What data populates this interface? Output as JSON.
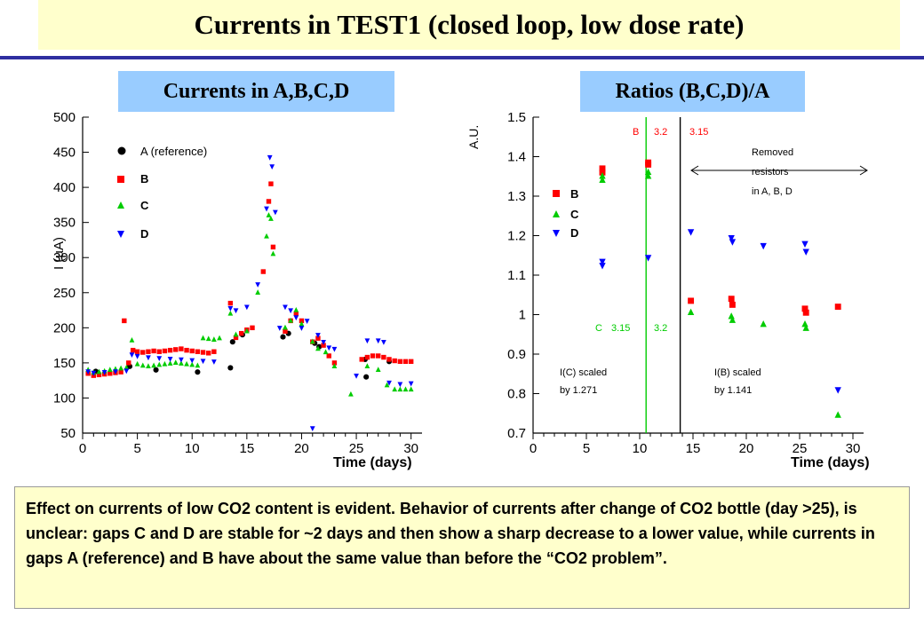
{
  "title": "Currents in TEST1 (closed loop, low dose rate)",
  "left_subtitle": "Currents in A,B,C,D",
  "right_subtitle": "Ratios (B,C,D)/A",
  "description": "Effect on currents of low CO2 content is evident. Behavior of currents after change of CO2 bottle (day >25), is unclear: gaps C and D are stable for ~2 days and then show a sharp decrease to a lower value, while currents in gaps A (reference) and B have about the same value than before the “CO2 problem”.",
  "colors": {
    "A": "#000000",
    "B": "#ff0000",
    "C": "#00cc00",
    "D": "#0000ff",
    "title_bg": "#ffffcc",
    "subtitle_bg": "#99ccff",
    "rule": "#2e2ea0",
    "vline": "#00cc00"
  },
  "chart_data": [
    {
      "type": "scatter",
      "xlabel": "Time (days)",
      "ylabel": "I (µA)",
      "xlim": [
        0,
        31
      ],
      "ylim": [
        50,
        500
      ],
      "xticks": [
        0,
        5,
        10,
        15,
        20,
        25,
        30
      ],
      "yticks": [
        50,
        100,
        150,
        200,
        250,
        300,
        350,
        400,
        450,
        500
      ],
      "legend_position": "top-left",
      "series": [
        {
          "name": "A (reference)",
          "marker": "circle",
          "color": "#000000",
          "x": [
            1.2,
            4.3,
            6.7,
            10.5,
            13.5,
            13.7,
            14.6,
            18.3,
            18.8,
            21.2,
            21.6,
            25.8,
            25.9,
            28.0
          ],
          "y": [
            138,
            145,
            140,
            137,
            143,
            180,
            190,
            187,
            192,
            178,
            173,
            155,
            130,
            152
          ]
        },
        {
          "name": "B",
          "marker": "square",
          "color": "#ff0000",
          "x": [
            0.5,
            1,
            1.5,
            2,
            2.5,
            3,
            3.5,
            3.8,
            4.2,
            4.6,
            5,
            5.5,
            6,
            6.5,
            7,
            7.5,
            8,
            8.5,
            9,
            9.5,
            10,
            10.5,
            11,
            11.5,
            12,
            13.5,
            14,
            14.5,
            15,
            15.5,
            16.5,
            17,
            17.2,
            17.4,
            18.5,
            19,
            19.5,
            20,
            21,
            21.5,
            22,
            22.5,
            23,
            25.5,
            26,
            26.5,
            27,
            27.5,
            28,
            28.5,
            29,
            29.5,
            30
          ],
          "y": [
            135,
            132,
            133,
            134,
            135,
            136,
            137,
            210,
            150,
            168,
            166,
            165,
            166,
            167,
            166,
            167,
            168,
            169,
            170,
            168,
            167,
            166,
            165,
            164,
            166,
            235,
            186,
            192,
            197,
            200,
            280,
            380,
            405,
            315,
            195,
            210,
            220,
            210,
            180,
            185,
            175,
            160,
            150,
            155,
            158,
            160,
            160,
            158,
            155,
            153,
            152,
            152,
            152
          ]
        },
        {
          "name": "C",
          "marker": "triangle",
          "color": "#00cc00",
          "x": [
            0.5,
            1,
            1.5,
            2,
            2.5,
            3,
            3.5,
            4,
            4.5,
            5,
            5.5,
            6,
            6.5,
            7,
            7.5,
            8,
            8.5,
            9,
            9.5,
            10,
            10.5,
            11,
            11.5,
            12,
            12.5,
            13.5,
            14,
            15,
            16,
            16.8,
            17,
            17.2,
            17.4,
            18.5,
            19,
            19.5,
            20,
            21,
            21.5,
            22.2,
            23,
            24.5,
            26,
            27,
            27.8,
            28.5,
            29,
            29.5,
            30
          ],
          "y": [
            140,
            136,
            137,
            138,
            140,
            141,
            142,
            143,
            182,
            148,
            146,
            145,
            146,
            147,
            148,
            149,
            150,
            149,
            148,
            147,
            146,
            185,
            184,
            183,
            185,
            220,
            190,
            195,
            250,
            330,
            360,
            355,
            305,
            200,
            210,
            225,
            205,
            180,
            170,
            165,
            145,
            105,
            145,
            140,
            118,
            112,
            112,
            112,
            112
          ]
        },
        {
          "name": "D",
          "marker": "triangle-down",
          "color": "#0000ff",
          "x": [
            0.5,
            1,
            2,
            3,
            4,
            4.5,
            5,
            6,
            7,
            8,
            9,
            10,
            11,
            12,
            13.5,
            14,
            15,
            16,
            16.8,
            17.1,
            17.3,
            17.6,
            18,
            18.5,
            19,
            19.5,
            20,
            20.5,
            21,
            21.5,
            22,
            22.5,
            23,
            25,
            26,
            27,
            27.5,
            28,
            29,
            30
          ],
          "y": [
            138,
            136,
            137,
            138,
            139,
            162,
            160,
            158,
            157,
            156,
            155,
            154,
            153,
            152,
            228,
            225,
            230,
            262,
            370,
            443,
            430,
            365,
            200,
            230,
            225,
            215,
            200,
            210,
            57,
            190,
            180,
            172,
            170,
            132,
            182,
            182,
            180,
            122,
            120,
            121
          ]
        }
      ]
    },
    {
      "type": "scatter",
      "xlabel": "Time (days)",
      "ylabel": "A.U.",
      "xlim": [
        0,
        31
      ],
      "ylim": [
        0.7,
        1.5
      ],
      "xticks": [
        0,
        5,
        10,
        15,
        20,
        25,
        30
      ],
      "yticks": [
        0.7,
        0.8,
        0.9,
        1,
        1.1,
        1.2,
        1.3,
        1.4,
        1.5
      ],
      "ytick_labels": [
        "0.7",
        "0.8",
        "0.9",
        "1",
        "1.1",
        "1.2",
        "1.3",
        "1.4",
        "1.5"
      ],
      "legend_position": "top-left",
      "series": [
        {
          "name": "B",
          "marker": "square",
          "color": "#ff0000",
          "x": [
            6.5,
            6.5,
            10.8,
            10.8,
            14.8,
            18.6,
            18.7,
            25.5,
            25.6,
            28.6
          ],
          "y": [
            1.37,
            1.36,
            1.385,
            1.38,
            1.035,
            1.04,
            1.025,
            1.015,
            1.005,
            1.02
          ]
        },
        {
          "name": "C",
          "marker": "triangle",
          "color": "#00cc00",
          "x": [
            6.5,
            6.5,
            10.8,
            10.8,
            14.8,
            18.6,
            18.7,
            21.6,
            25.5,
            25.6,
            28.6
          ],
          "y": [
            1.35,
            1.34,
            1.36,
            1.35,
            1.005,
            0.995,
            0.985,
            0.975,
            0.975,
            0.965,
            0.745
          ]
        },
        {
          "name": "D",
          "marker": "triangle-down",
          "color": "#0000ff",
          "x": [
            6.5,
            6.5,
            10.8,
            14.8,
            18.6,
            18.7,
            21.6,
            25.5,
            25.6,
            28.6
          ],
          "y": [
            1.135,
            1.125,
            1.145,
            1.21,
            1.195,
            1.185,
            1.175,
            1.18,
            1.16,
            0.81
          ]
        }
      ],
      "vlines": [
        {
          "x": 10.6,
          "color": "#00cc00"
        },
        {
          "x": 13.8,
          "color": "#000000"
        }
      ],
      "annotations": {
        "b_label": "B",
        "b_val1": "3.2",
        "b_val2": "3.15",
        "c_label": "C",
        "c_val1": "3.15",
        "c_val2": "3.2",
        "removed_l1": "Removed",
        "removed_l2": "resistors",
        "removed_l3": "in A, B, D",
        "ic_l1": "I(C) scaled",
        "ic_l2": "by 1.271",
        "ib_l1": "I(B) scaled",
        "ib_l2": "by 1.141"
      }
    }
  ]
}
